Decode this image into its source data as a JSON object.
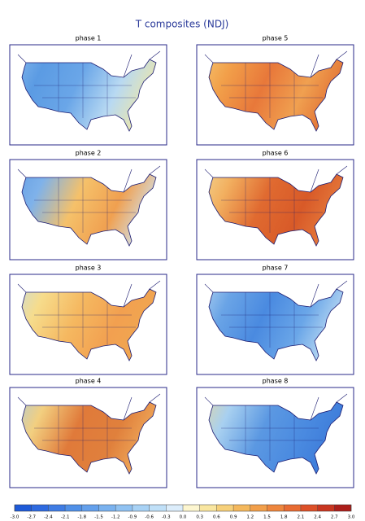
{
  "title": "T composites (NDJ)",
  "panels": [
    {
      "title": "phase 1"
    },
    {
      "title": "phase 5"
    },
    {
      "title": "phase 2"
    },
    {
      "title": "phase 6"
    },
    {
      "title": "phase 3"
    },
    {
      "title": "phase 7"
    },
    {
      "title": "phase 4"
    },
    {
      "title": "phase 8"
    }
  ],
  "colorbar": {
    "lim": [
      -3.0,
      3.0
    ],
    "ticks": [
      {
        "value": -3.0,
        "label": "-3.0"
      },
      {
        "value": -2.7,
        "label": "-2.7"
      },
      {
        "value": -2.4,
        "label": "-2.4"
      },
      {
        "value": -2.1,
        "label": "-2.1"
      },
      {
        "value": -1.8,
        "label": "-1.8"
      },
      {
        "value": -1.5,
        "label": "-1.5"
      },
      {
        "value": -1.2,
        "label": "-1.2"
      },
      {
        "value": -0.9,
        "label": "-0.9"
      },
      {
        "value": -0.6,
        "label": "-0.6"
      },
      {
        "value": -0.3,
        "label": "-0.3"
      },
      {
        "value": 0.0,
        "label": "0.0"
      },
      {
        "value": 0.3,
        "label": "0.3"
      },
      {
        "value": 0.6,
        "label": "0.6"
      },
      {
        "value": 0.9,
        "label": "0.9"
      },
      {
        "value": 1.2,
        "label": "1.2"
      },
      {
        "value": 1.5,
        "label": "1.5"
      },
      {
        "value": 1.8,
        "label": "1.8"
      },
      {
        "value": 2.1,
        "label": "2.1"
      },
      {
        "value": 2.4,
        "label": "2.4"
      },
      {
        "value": 2.7,
        "label": "2.7"
      },
      {
        "value": 3.0,
        "label": "3.0"
      }
    ],
    "colors": [
      "#1e5ad8",
      "#2e6ae0",
      "#3f7ce4",
      "#5090e8",
      "#64a0ec",
      "#7ab2ef",
      "#90c2f2",
      "#a8d2f5",
      "#c0e0f8",
      "#dcedfb",
      "#fdf6d0",
      "#f9e6a0",
      "#f6d07a",
      "#f4b85c",
      "#f29f4a",
      "#ee863d",
      "#e86b32",
      "#dd5028",
      "#c93620",
      "#ac1e1a"
    ]
  }
}
